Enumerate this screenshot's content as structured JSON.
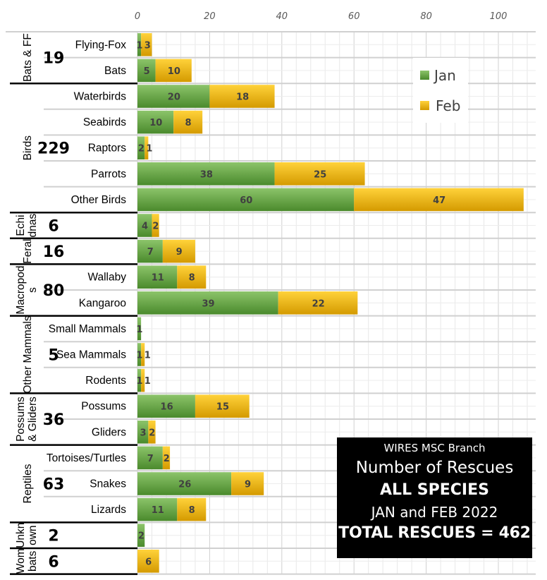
{
  "chart_data": {
    "type": "bar",
    "orientation": "horizontal",
    "stacked": true,
    "title": "WIRES MSC Branch Number of Rescues ALL SPECIES JAN and FEB 2022",
    "xlabel": "",
    "ylabel": "",
    "xlim": [
      0,
      110
    ],
    "x_ticks": [
      "0",
      "20",
      "40",
      "60",
      "80",
      "100"
    ],
    "x_tick_values": [
      0,
      20,
      40,
      60,
      80,
      100
    ],
    "grid": true,
    "legend": {
      "position": "top-right",
      "entries": [
        "Jan",
        "Feb"
      ]
    },
    "categories": [
      "Flying-Fox",
      "Bats",
      "Waterbirds",
      "Seabirds",
      "Raptors",
      "Parrots",
      "Other Birds",
      "",
      "",
      "Wallaby",
      "Kangaroo",
      "Small Mammals",
      "Sea Mammals",
      "Rodents",
      "Possums",
      "Gliders",
      "Tortoises/Turtles",
      "Snakes",
      "Lizards",
      "",
      ""
    ],
    "series": [
      {
        "name": "Jan",
        "color": "#5b9a3c",
        "values": [
          1,
          5,
          20,
          10,
          2,
          38,
          60,
          4,
          7,
          11,
          39,
          1,
          1,
          1,
          16,
          3,
          7,
          26,
          11,
          2,
          0
        ]
      },
      {
        "name": "Feb",
        "color": "#f5b800",
        "values": [
          3,
          10,
          18,
          8,
          1,
          25,
          47,
          2,
          9,
          8,
          22,
          0,
          1,
          1,
          15,
          2,
          2,
          9,
          8,
          0,
          6
        ]
      }
    ],
    "groups": [
      {
        "name": "Bats & FF",
        "total": "19",
        "rows": [
          0,
          1
        ]
      },
      {
        "name": "Birds",
        "total": "229",
        "rows": [
          2,
          6
        ]
      },
      {
        "name": "Echidnas",
        "name_lines": [
          "Echi",
          "dnas"
        ],
        "total": "6",
        "rows": [
          7,
          7
        ]
      },
      {
        "name": "Feral",
        "total": "16",
        "rows": [
          8,
          8
        ]
      },
      {
        "name": "Macropods",
        "name_lines": [
          "Macropod",
          "s"
        ],
        "total": "80",
        "rows": [
          9,
          10
        ]
      },
      {
        "name": "Other Mammals",
        "total": "5",
        "rows": [
          11,
          13
        ]
      },
      {
        "name": "Possums & Gliders",
        "name_lines": [
          "Possums",
          "& Gliders"
        ],
        "total": "36",
        "rows": [
          14,
          15
        ]
      },
      {
        "name": "Reptiles",
        "total": "63",
        "rows": [
          16,
          18
        ]
      },
      {
        "name": "Unknown",
        "name_lines": [
          "Unkn",
          "own"
        ],
        "total": "2",
        "rows": [
          19,
          19
        ]
      },
      {
        "name": "Wombats",
        "name_lines": [
          "Wom",
          "bats"
        ],
        "total": "6",
        "rows": [
          20,
          20
        ]
      }
    ]
  },
  "infobox": {
    "line1": "WIRES MSC Branch",
    "line2": "Number of Rescues",
    "line3": "ALL SPECIES",
    "line4": "JAN and FEB 2022",
    "line5": "TOTAL RESCUES = 462"
  }
}
